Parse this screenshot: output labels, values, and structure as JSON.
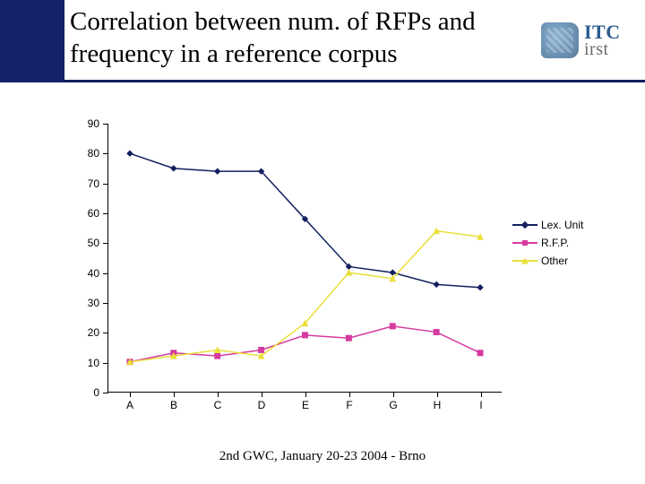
{
  "header": {
    "title": "Correlation between num. of RFPs and frequency in a reference corpus",
    "logo": {
      "itc": "ITC",
      "irst": "irst"
    }
  },
  "footer": {
    "text": "2nd GWC, January 20-23  2004 - Brno"
  },
  "chart": {
    "type": "line",
    "background_color": "#ffffff",
    "axis_color": "#000000",
    "tick_fontsize": 12,
    "ylim": [
      0,
      90
    ],
    "ytick_step": 10,
    "x_categories": [
      "A",
      "B",
      "C",
      "D",
      "E",
      "F",
      "G",
      "H",
      "I"
    ],
    "line_width": 1.5,
    "marker_size": 6,
    "series": [
      {
        "name": "Lex. Unit",
        "color": "#12205f",
        "marker": "diamond",
        "values": [
          80,
          75,
          74,
          74,
          58,
          42,
          40,
          36,
          35
        ]
      },
      {
        "name": "R.F.P.",
        "color": "#d63aa0",
        "marker": "square",
        "values": [
          10,
          13,
          12,
          14,
          19,
          18,
          22,
          20,
          13
        ]
      },
      {
        "name": "Other",
        "color": "#e9e03a",
        "marker": "triangle",
        "values": [
          10,
          12,
          14,
          12,
          23,
          40,
          38,
          54,
          52
        ]
      }
    ],
    "legend": {
      "fontsize": 12,
      "position": "right"
    }
  }
}
